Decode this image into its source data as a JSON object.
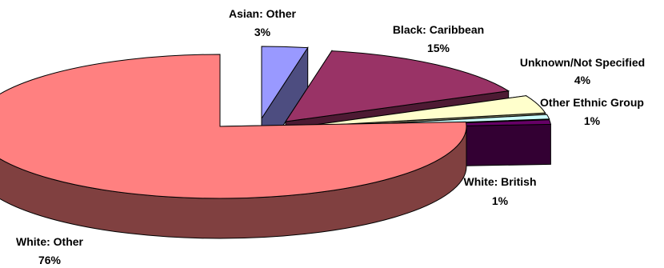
{
  "chart_data": {
    "type": "pie",
    "title": "",
    "three_d": true,
    "exploded": true,
    "slices": [
      {
        "category": "Asian: Other",
        "value": 3,
        "value_label": "3%",
        "color": "#9999ff",
        "side_color": "#4d4d80"
      },
      {
        "category": "Black: Caribbean",
        "value": 15,
        "value_label": "15%",
        "color": "#993366",
        "side_color": "#4d1a33"
      },
      {
        "category": "Unknown/Not Specified",
        "value": 4,
        "value_label": "4%",
        "color": "#ffffcc",
        "side_color": "#808066"
      },
      {
        "category": "Other Ethnic Group",
        "value": 1,
        "value_label": "1%",
        "color": "#ccffff",
        "side_color": "#668080"
      },
      {
        "category": "White: British",
        "value": 1,
        "value_label": "1%",
        "color": "#660066",
        "side_color": "#330033"
      },
      {
        "category": "White: Other",
        "value": 76,
        "value_label": "76%",
        "color": "#ff8080",
        "side_color": "#804040"
      }
    ]
  }
}
